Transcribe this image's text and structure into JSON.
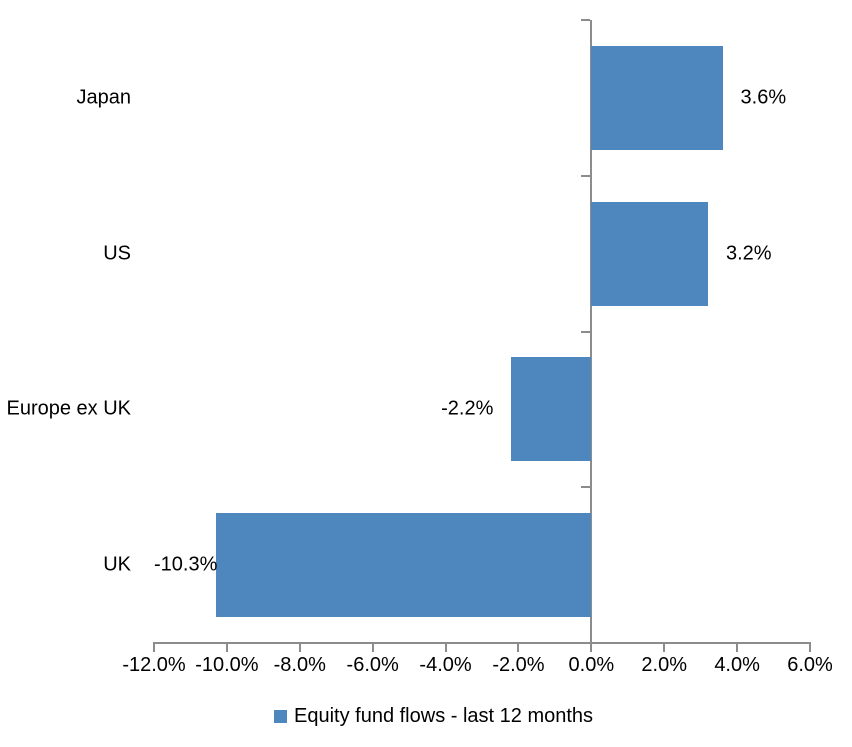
{
  "chart_data": {
    "type": "bar",
    "orientation": "horizontal",
    "categories": [
      "Japan",
      "US",
      "Europe ex UK",
      "UK"
    ],
    "values": [
      3.6,
      3.2,
      -2.2,
      -10.3
    ],
    "data_labels": [
      "3.6%",
      "3.2%",
      "-2.2%",
      "-10.3%"
    ],
    "series_name": "Equity fund flows - last 12 months",
    "legend": "Equity fund flows - last 12 months",
    "legend_position": "bottom",
    "xlim": [
      -12,
      6
    ],
    "xtick_step": 2,
    "xtick_labels": [
      "-12.0%",
      "-10.0%",
      "-8.0%",
      "-6.0%",
      "-4.0%",
      "-2.0%",
      "0.0%",
      "2.0%",
      "4.0%",
      "6.0%"
    ],
    "grid": false,
    "data_label_position": "outside-end",
    "colors": {
      "bar": "#4E87BE",
      "axis": "#8C8C8C",
      "text": "#000000",
      "background": "#FFFFFF"
    }
  }
}
